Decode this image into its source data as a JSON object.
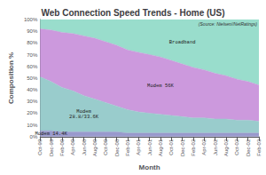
{
  "chart_data": {
    "type": "area",
    "stacked": true,
    "title": "Web Connection Speed Trends - Home (US)",
    "xlabel": "Month",
    "ylabel": "Composition %",
    "categories": [
      "Oct-99",
      "Dec-99",
      "Feb-00",
      "Apr-00",
      "Jun-00",
      "Aug-00",
      "Oct-00",
      "Dec-00",
      "Feb-01",
      "Apr-01",
      "Jun-01",
      "Aug-01",
      "Oct-01",
      "Dec-01",
      "Feb-02",
      "Apr-02",
      "Jun-02",
      "Aug-02",
      "Oct-02",
      "Dec-02",
      "Feb-03"
    ],
    "series": [
      {
        "name": "Modem 14.4K",
        "color": "#9999cc",
        "values": [
          5,
          5,
          4,
          4,
          4,
          4,
          4,
          4,
          3,
          3,
          3,
          3,
          3,
          3,
          3,
          3,
          3,
          3,
          3,
          3,
          3
        ]
      },
      {
        "name": "Modem 28.8/33.6K",
        "color": "#99cccc",
        "values": [
          46,
          42,
          38,
          35,
          31,
          28,
          25,
          22,
          20,
          18,
          17,
          16,
          15,
          14,
          13,
          13,
          12,
          12,
          11,
          11,
          10
        ]
      },
      {
        "name": "Modem 56K",
        "color": "#cc99dd",
        "values": [
          41,
          44,
          47,
          49,
          51,
          52,
          52,
          52,
          51,
          51,
          50,
          49,
          47,
          45,
          43,
          41,
          39,
          37,
          35,
          33,
          31
        ]
      },
      {
        "name": "Broadband",
        "color": "#99ddcc",
        "values": [
          8,
          9,
          11,
          12,
          14,
          16,
          19,
          22,
          26,
          28,
          30,
          32,
          35,
          38,
          41,
          43,
          46,
          48,
          51,
          53,
          56
        ]
      }
    ],
    "annotations": [
      {
        "text": "(Source: Nielsen//NetRatings)"
      },
      {
        "text": "Modem 14.4K",
        "series": "Modem 14.4K",
        "x": "Dec-99"
      },
      {
        "text": "Modem\n28.8/33.6K",
        "series": "Modem 28.8/33.6K",
        "x": "Jun-00"
      },
      {
        "text": "Modem 56K",
        "series": "Modem 56K",
        "x": "Aug-01"
      },
      {
        "text": "Broadband",
        "series": "Broadband",
        "x": "Dec-01"
      }
    ],
    "ylim": [
      0,
      100
    ],
    "yticks": [
      {
        "value": 0,
        "label": "0%"
      },
      {
        "value": 10,
        "label": "10%"
      },
      {
        "value": 20,
        "label": "20%"
      },
      {
        "value": 30,
        "label": "30%"
      },
      {
        "value": 40,
        "label": "40%"
      },
      {
        "value": 50,
        "label": "50%"
      },
      {
        "value": 60,
        "label": "60%"
      },
      {
        "value": 70,
        "label": "70%"
      },
      {
        "value": 80,
        "label": "80%"
      },
      {
        "value": 90,
        "label": "90%"
      },
      {
        "value": 100,
        "label": "100%"
      }
    ],
    "grid": true
  }
}
